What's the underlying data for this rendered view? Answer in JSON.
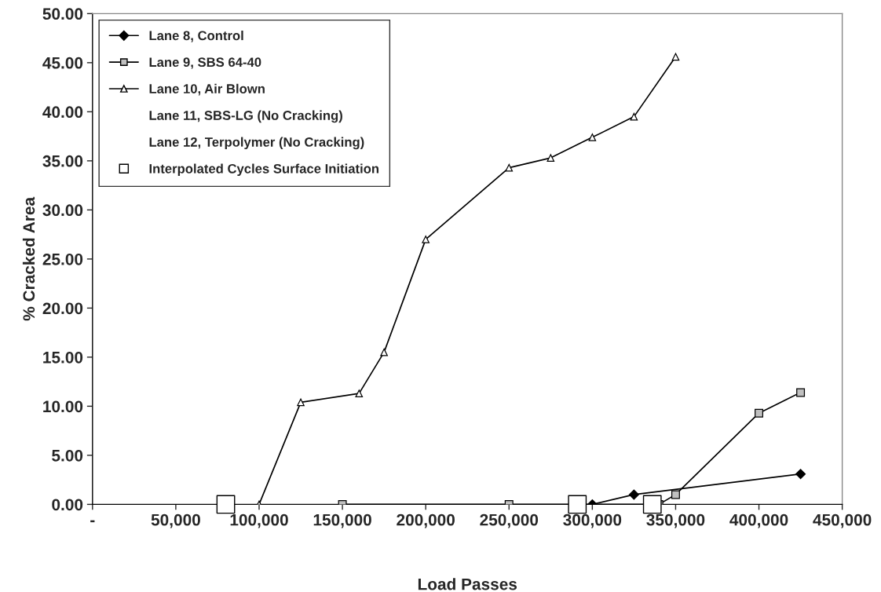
{
  "chart_data": {
    "type": "line",
    "xlabel": "Load Passes",
    "ylabel": "% Cracked Area",
    "xlim": [
      0,
      450000
    ],
    "xticks": [
      {
        "value": 0,
        "label": "-"
      },
      {
        "value": 50000,
        "label": "50,000"
      },
      {
        "value": 100000,
        "label": "100,000"
      },
      {
        "value": 150000,
        "label": "150,000"
      },
      {
        "value": 200000,
        "label": "200,000"
      },
      {
        "value": 250000,
        "label": "250,000"
      },
      {
        "value": 300000,
        "label": "300,000"
      },
      {
        "value": 350000,
        "label": "350,000"
      },
      {
        "value": 400000,
        "label": "400,000"
      },
      {
        "value": 450000,
        "label": "450,000"
      }
    ],
    "ylim": [
      0,
      50
    ],
    "yticks": [
      {
        "value": 0,
        "label": "0.00"
      },
      {
        "value": 5,
        "label": "5.00"
      },
      {
        "value": 10,
        "label": "10.00"
      },
      {
        "value": 15,
        "label": "15.00"
      },
      {
        "value": 20,
        "label": "20.00"
      },
      {
        "value": 25,
        "label": "25.00"
      },
      {
        "value": 30,
        "label": "30.00"
      },
      {
        "value": 35,
        "label": "35.00"
      },
      {
        "value": 40,
        "label": "40.00"
      },
      {
        "value": 45,
        "label": "45.00"
      },
      {
        "value": 50,
        "label": "50.00"
      }
    ],
    "grid": false,
    "legend": "top left",
    "series": [
      {
        "name": "Lane 8, Control",
        "color": "#000000",
        "marker": "diamond",
        "x": [
          300000,
          325000,
          425000
        ],
        "values": [
          0,
          1.0,
          3.1
        ]
      },
      {
        "name": "Lane 9, SBS 64-40",
        "color": "#c0c0c0",
        "marker": "square",
        "x": [
          150000,
          250000,
          340000,
          350000,
          400000,
          425000
        ],
        "values": [
          0,
          0,
          0,
          1.0,
          9.3,
          11.4
        ]
      },
      {
        "name": "Lane 10, Air Blown",
        "color": "#ffffff",
        "marker": "triangle",
        "x": [
          100000,
          125000,
          160000,
          175000,
          200000,
          250000,
          275000,
          300000,
          325000,
          350000
        ],
        "values": [
          0,
          10.4,
          11.3,
          15.5,
          27.0,
          34.3,
          35.3,
          37.4,
          39.5,
          45.6
        ]
      },
      {
        "name": "Lane 11, SBS-LG (No Cracking)",
        "marker": "none"
      },
      {
        "name": "Lane 12, Terpolymer (No Cracking)",
        "marker": "none"
      },
      {
        "name": "Interpolated Cycles Surface Initiation",
        "type": "scatter",
        "color": "#ffffff",
        "marker": "square",
        "x": [
          80000,
          291000,
          336000
        ],
        "values": [
          0,
          0,
          0
        ]
      }
    ]
  }
}
